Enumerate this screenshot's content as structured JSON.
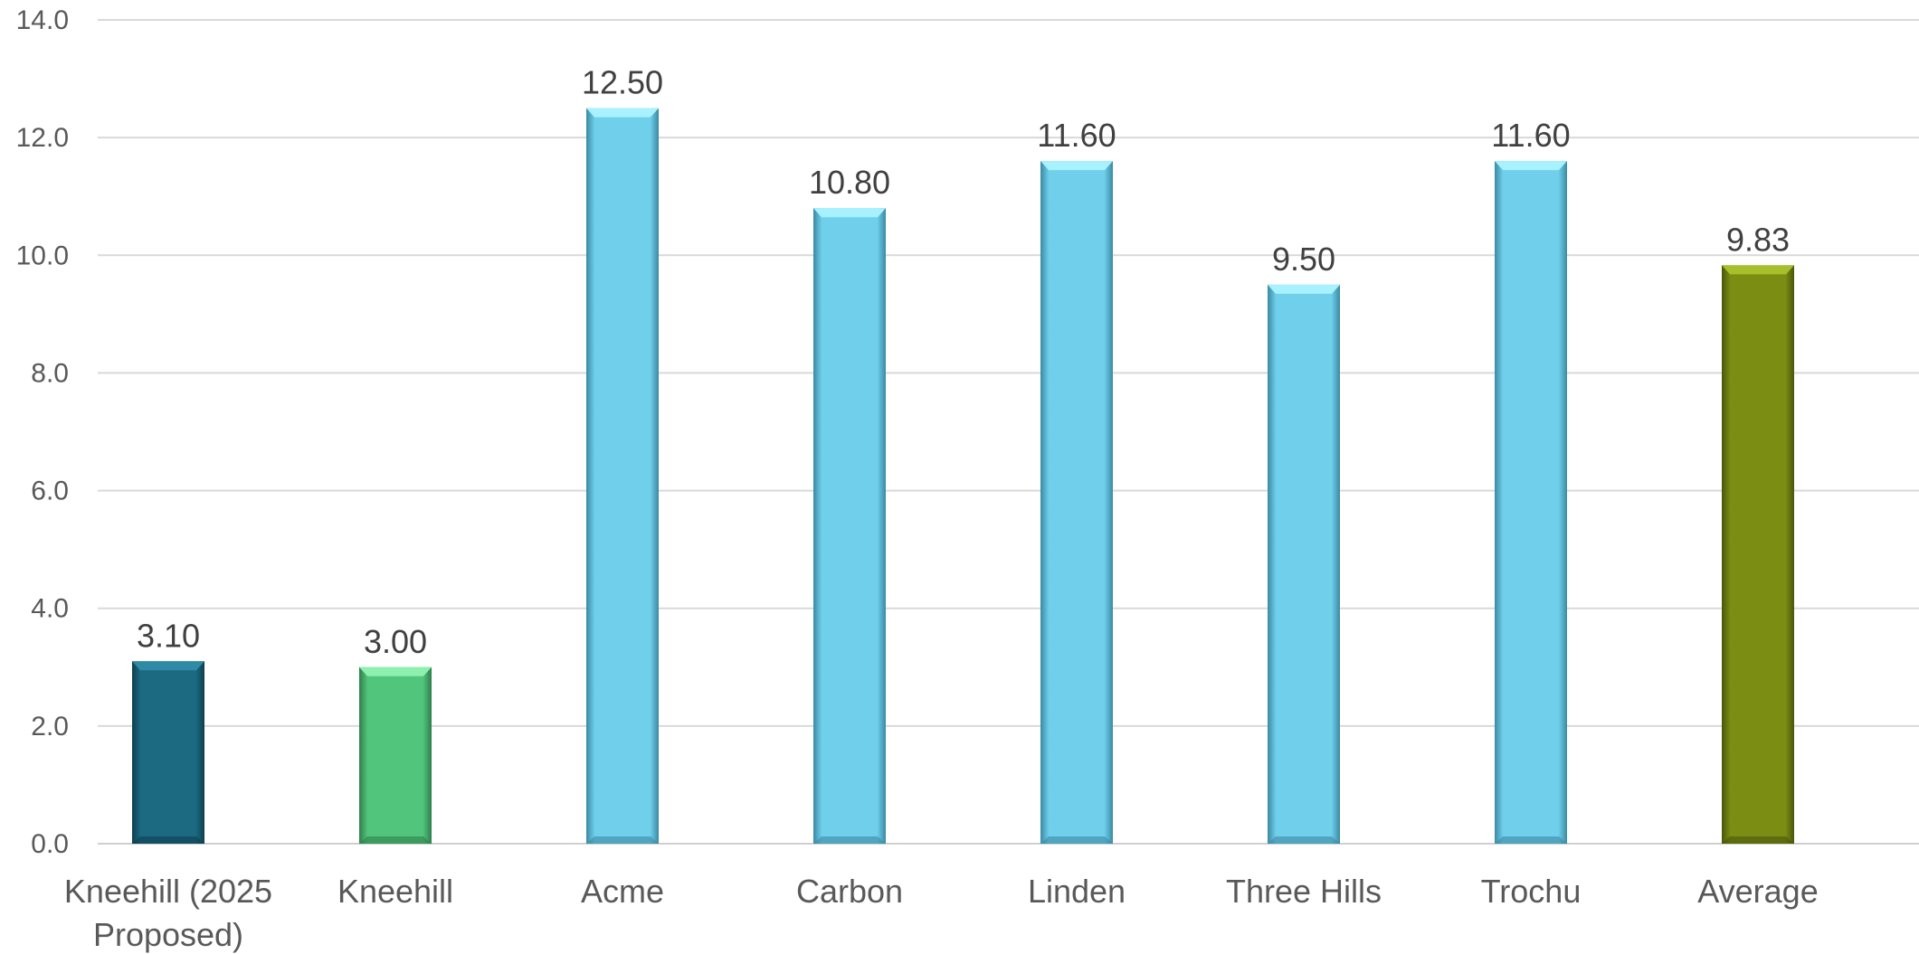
{
  "chart_data": {
    "type": "bar",
    "title": "",
    "xlabel": "",
    "ylabel": "",
    "ylim": [
      0,
      14
    ],
    "yticks": [
      0,
      2,
      4,
      6,
      8,
      10,
      12,
      14
    ],
    "ytick_labels": [
      "0.0",
      "2.0",
      "4.0",
      "6.0",
      "8.0",
      "10.0",
      "12.0",
      "14.0"
    ],
    "grid": true,
    "legend": "none",
    "categories": [
      [
        "Kneehill (2025",
        "Proposed)"
      ],
      [
        "Kneehill"
      ],
      [
        "Acme"
      ],
      [
        "Carbon"
      ],
      [
        "Linden"
      ],
      [
        "Three Hills"
      ],
      [
        "Trochu"
      ],
      [
        "Average"
      ]
    ],
    "values": [
      3.1,
      3.0,
      12.5,
      10.8,
      11.6,
      9.5,
      11.6,
      9.83
    ],
    "data_labels": [
      "3.10",
      "3.00",
      "12.50",
      "10.80",
      "11.60",
      "9.50",
      "11.60",
      "9.83"
    ],
    "bar_colors": [
      "#1b6a82",
      "#52c57c",
      "#70d0ec",
      "#70d0ec",
      "#70d0ec",
      "#70d0ec",
      "#70d0ec",
      "#7b8d13"
    ],
    "bar_edge_colors": [
      "#0f3f4e",
      "#2f7f4c",
      "#3b8aa3",
      "#3b8aa3",
      "#3b8aa3",
      "#3b8aa3",
      "#3b8aa3",
      "#4a560a"
    ],
    "bar_highlight_colors": [
      "#2f8aa6",
      "#8ef0af",
      "#a8f1ff",
      "#a8f1ff",
      "#a8f1ff",
      "#a8f1ff",
      "#a8f1ff",
      "#a7bf2a"
    ]
  }
}
